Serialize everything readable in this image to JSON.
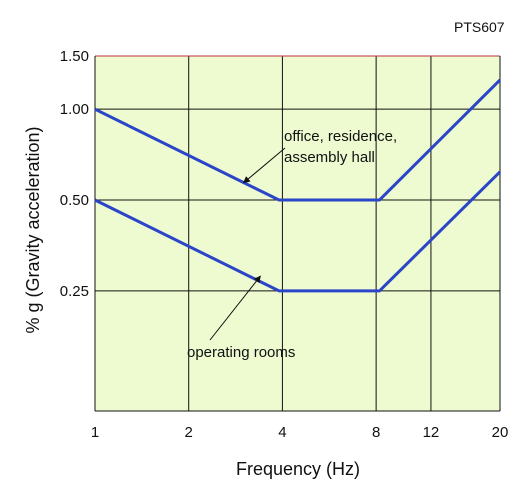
{
  "header": {
    "code": "PTS607"
  },
  "chart_data": {
    "type": "line",
    "title": "",
    "xlabel": "Frequency (Hz)",
    "ylabel": "% g (Gravity acceleration)",
    "x_scale": "log",
    "y_scale": "log",
    "xlim": [
      1,
      20
    ],
    "ylim": [
      0.1,
      1.5
    ],
    "x_ticks": [
      1,
      2,
      4,
      8,
      12,
      20
    ],
    "x_tick_labels": [
      "1",
      "2",
      "4",
      "8",
      "12",
      "20"
    ],
    "y_ticks": [
      0.25,
      0.5,
      1.0,
      1.5
    ],
    "y_tick_labels": [
      "0.25",
      "0.50",
      "1.00",
      "1.50"
    ],
    "grid": true,
    "plot_background": "#EEFAD0",
    "series_color": "#2B45C8",
    "grid_color": "#111111",
    "top_border_color": "#C03040",
    "series": [
      {
        "x": [
          1,
          3.9,
          8.2,
          20
        ],
        "y": [
          1.0,
          0.5,
          0.5,
          1.25
        ]
      },
      {
        "x": [
          1,
          3.9,
          8.2,
          20
        ],
        "y": [
          0.5,
          0.25,
          0.25,
          0.62
        ]
      }
    ],
    "annotations": [
      {
        "lines": [
          "office, residence,",
          "assembly hall"
        ],
        "arrow_to": [
          3.0,
          0.57
        ]
      },
      {
        "lines": [
          "operating rooms"
        ],
        "arrow_to": [
          3.4,
          0.28
        ]
      }
    ]
  }
}
